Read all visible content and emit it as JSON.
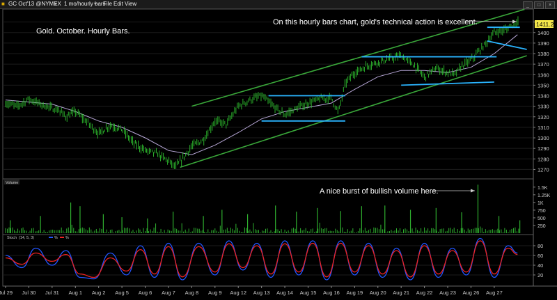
{
  "window": {
    "symbol": "GC Oct'13 @NYMEX",
    "interval": "1 mo/hourly bars",
    "menu": [
      "File",
      "Edit",
      "View"
    ],
    "buttons": [
      "_",
      "□",
      "×"
    ]
  },
  "price_panel": {
    "title": "Gold. October. Hourly Bars.",
    "note": "On this hourly bars chart, gold's technical action is excellent.",
    "last_price": "1411.20"
  },
  "volume_panel": {
    "label": "Volume",
    "note": "A nice burst of bullish volume here."
  },
  "stoch_panel": {
    "label": "Stoch",
    "params": "(14, 5, 3)",
    "k_label": "%",
    "d_label": "%"
  },
  "colors": {
    "background": "#000000",
    "price_bars": "#2fc22f",
    "moving_average": "#b8a8d8",
    "channel": "#3aa83a",
    "horizontal_lines": "#2ab4ff",
    "volume": "#2fb02f",
    "stoch_k": "#2255ff",
    "stoch_d": "#ee2222",
    "text": "#ffffff",
    "price_tag": "#f5e84a"
  },
  "chart_data": [
    {
      "type": "line",
      "panel": "price",
      "x_ticks": [
        "Jul 29",
        "Jul 30",
        "Jul 31",
        "Aug 1",
        "Aug 2",
        "Aug 5",
        "Aug 6",
        "Aug 7",
        "Aug 8",
        "Aug 9",
        "Aug 12",
        "Aug 13",
        "Aug 14",
        "Aug 15",
        "Aug 16",
        "Aug 19",
        "Aug 20",
        "Aug 21",
        "Aug 22",
        "Aug 23",
        "Aug 26",
        "Aug 27"
      ],
      "y_ticks": [
        1270,
        1280,
        1290,
        1300,
        1310,
        1320,
        1330,
        1340,
        1350,
        1360,
        1370,
        1380,
        1390,
        1400,
        1410
      ],
      "ylim": [
        1263,
        1421
      ],
      "xlim": [
        0,
        22.5
      ],
      "last_price": 1411.2,
      "series": [
        {
          "role": "price",
          "x": [
            0.0,
            0.5,
            1.0,
            1.5,
            2.0,
            2.3,
            2.6,
            3.0,
            3.5,
            4.0,
            4.5,
            5.0,
            5.5,
            6.0,
            6.5,
            7.0,
            7.3,
            7.6,
            8.0,
            8.5,
            9.0,
            9.5,
            10.0,
            10.5,
            11.0,
            11.5,
            12.0,
            12.5,
            13.0,
            13.5,
            14.0,
            14.3,
            14.6,
            15.0,
            15.5,
            16.0,
            16.5,
            17.0,
            17.5,
            18.0,
            18.5,
            19.0,
            19.3,
            19.6,
            20.0,
            20.5,
            21.0,
            21.5,
            22.0
          ],
          "y": [
            1333,
            1330,
            1337,
            1332,
            1328,
            1326,
            1320,
            1325,
            1315,
            1304,
            1312,
            1308,
            1295,
            1288,
            1285,
            1278,
            1272,
            1280,
            1292,
            1298,
            1316,
            1313,
            1330,
            1336,
            1340,
            1330,
            1322,
            1328,
            1333,
            1337,
            1338,
            1324,
            1352,
            1362,
            1368,
            1372,
            1375,
            1378,
            1370,
            1358,
            1366,
            1362,
            1360,
            1368,
            1374,
            1386,
            1400,
            1403,
            1411
          ]
        },
        {
          "role": "moving-average",
          "x": [
            0.0,
            1.0,
            2.0,
            3.0,
            4.0,
            5.0,
            6.0,
            7.0,
            8.0,
            9.0,
            10.0,
            11.0,
            12.0,
            13.0,
            14.0,
            15.0,
            16.0,
            17.0,
            18.0,
            19.0,
            20.0,
            21.0,
            22.0
          ],
          "y": [
            1336,
            1334,
            1332,
            1325,
            1316,
            1310,
            1300,
            1288,
            1284,
            1293,
            1305,
            1318,
            1325,
            1329,
            1333,
            1346,
            1358,
            1364,
            1364,
            1362,
            1367,
            1380,
            1398
          ]
        }
      ],
      "channel_lines": [
        {
          "x": [
            7.5,
            22.4
          ],
          "y": [
            1272,
            1378
          ]
        },
        {
          "x": [
            8.0,
            22.3
          ],
          "y": [
            1330,
            1422
          ]
        }
      ],
      "horizontal_lines": [
        {
          "x": [
            11.3,
            14.6
          ],
          "y": [
            1340,
            1340
          ]
        },
        {
          "x": [
            11.0,
            14.6
          ],
          "y": [
            1316,
            1316
          ]
        },
        {
          "x": [
            15.3,
            21.1
          ],
          "y": [
            1377,
            1377
          ]
        },
        {
          "x": [
            17.0,
            21.0
          ],
          "y": [
            1350,
            1353
          ]
        },
        {
          "x": [
            20.7,
            22.1
          ],
          "y": [
            1405,
            1405
          ]
        },
        {
          "x": [
            20.7,
            22.4
          ],
          "y": [
            1392,
            1384
          ]
        }
      ]
    },
    {
      "type": "bar",
      "panel": "volume",
      "y_ticks": [
        "250",
        "500",
        "750",
        "1K",
        "1.25K",
        "1.5K"
      ],
      "ylim": [
        0,
        1700
      ],
      "x": [
        0.2,
        1.5,
        2.8,
        3.2,
        4.2,
        5.0,
        6.1,
        7.2,
        8.5,
        9.3,
        10.4,
        11.6,
        12.5,
        13.4,
        14.4,
        15.3,
        16.3,
        17.4,
        18.5,
        19.6,
        20.3,
        21.2,
        22.1
      ],
      "values": [
        420,
        560,
        1000,
        880,
        620,
        520,
        480,
        700,
        560,
        760,
        620,
        900,
        700,
        820,
        720,
        880,
        900,
        760,
        820,
        680,
        1580,
        560,
        420
      ]
    },
    {
      "type": "line",
      "panel": "stochastic",
      "y_ticks": [
        20,
        40,
        60,
        80
      ],
      "ylim": [
        0,
        100
      ],
      "series": [
        {
          "name": "%",
          "x": [
            0.0,
            0.7,
            1.3,
            2.0,
            2.6,
            3.2,
            3.8,
            4.5,
            5.2,
            5.8,
            6.4,
            7.0,
            7.6,
            8.3,
            9.0,
            9.6,
            10.2,
            10.8,
            11.4,
            12.0,
            12.6,
            13.2,
            13.8,
            14.4,
            15.0,
            15.6,
            16.2,
            16.8,
            17.4,
            18.0,
            18.6,
            19.2,
            19.8,
            20.4,
            21.0,
            21.6,
            22.0
          ],
          "y": [
            60,
            35,
            75,
            40,
            70,
            15,
            12,
            65,
            20,
            80,
            15,
            85,
            10,
            85,
            20,
            90,
            30,
            85,
            15,
            90,
            20,
            90,
            10,
            90,
            20,
            85,
            15,
            75,
            10,
            85,
            15,
            75,
            20,
            95,
            15,
            80,
            65
          ]
        },
        {
          "name": "%",
          "x": [
            0.0,
            0.7,
            1.3,
            2.0,
            2.6,
            3.2,
            3.8,
            4.5,
            5.2,
            5.8,
            6.4,
            7.0,
            7.6,
            8.3,
            9.0,
            9.6,
            10.2,
            10.8,
            11.4,
            12.0,
            12.6,
            13.2,
            13.8,
            14.4,
            15.0,
            15.6,
            16.2,
            16.8,
            17.4,
            18.0,
            18.6,
            19.2,
            19.8,
            20.4,
            21.0,
            21.6,
            22.0
          ],
          "y": [
            55,
            42,
            65,
            48,
            62,
            22,
            15,
            55,
            28,
            72,
            22,
            78,
            16,
            78,
            26,
            84,
            35,
            80,
            22,
            84,
            26,
            85,
            16,
            85,
            26,
            80,
            22,
            70,
            16,
            80,
            22,
            70,
            26,
            90,
            22,
            75,
            62
          ]
        }
      ]
    }
  ]
}
